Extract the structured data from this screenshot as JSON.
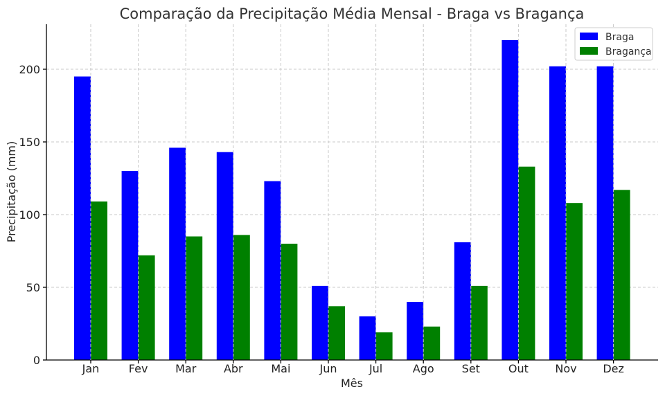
{
  "chart_data": {
    "type": "bar",
    "title": "Comparação da Precipitação Média Mensal - Braga vs Bragança",
    "xlabel": "Mês",
    "ylabel": "Precipitação (mm)",
    "categories": [
      "Jan",
      "Fev",
      "Mar",
      "Abr",
      "Mai",
      "Jun",
      "Jul",
      "Ago",
      "Set",
      "Out",
      "Nov",
      "Dez"
    ],
    "series": [
      {
        "name": "Braga",
        "color": "#0000ff",
        "values": [
          195,
          130,
          146,
          143,
          123,
          51,
          30,
          40,
          81,
          220,
          202,
          202
        ]
      },
      {
        "name": "Bragança",
        "color": "#008000",
        "values": [
          109,
          72,
          85,
          86,
          80,
          37,
          19,
          23,
          51,
          133,
          108,
          117
        ]
      }
    ],
    "ylim": [
      0,
      231
    ],
    "yticks": [
      0,
      50,
      100,
      150,
      200
    ],
    "grid": true,
    "legend": "top-right"
  }
}
